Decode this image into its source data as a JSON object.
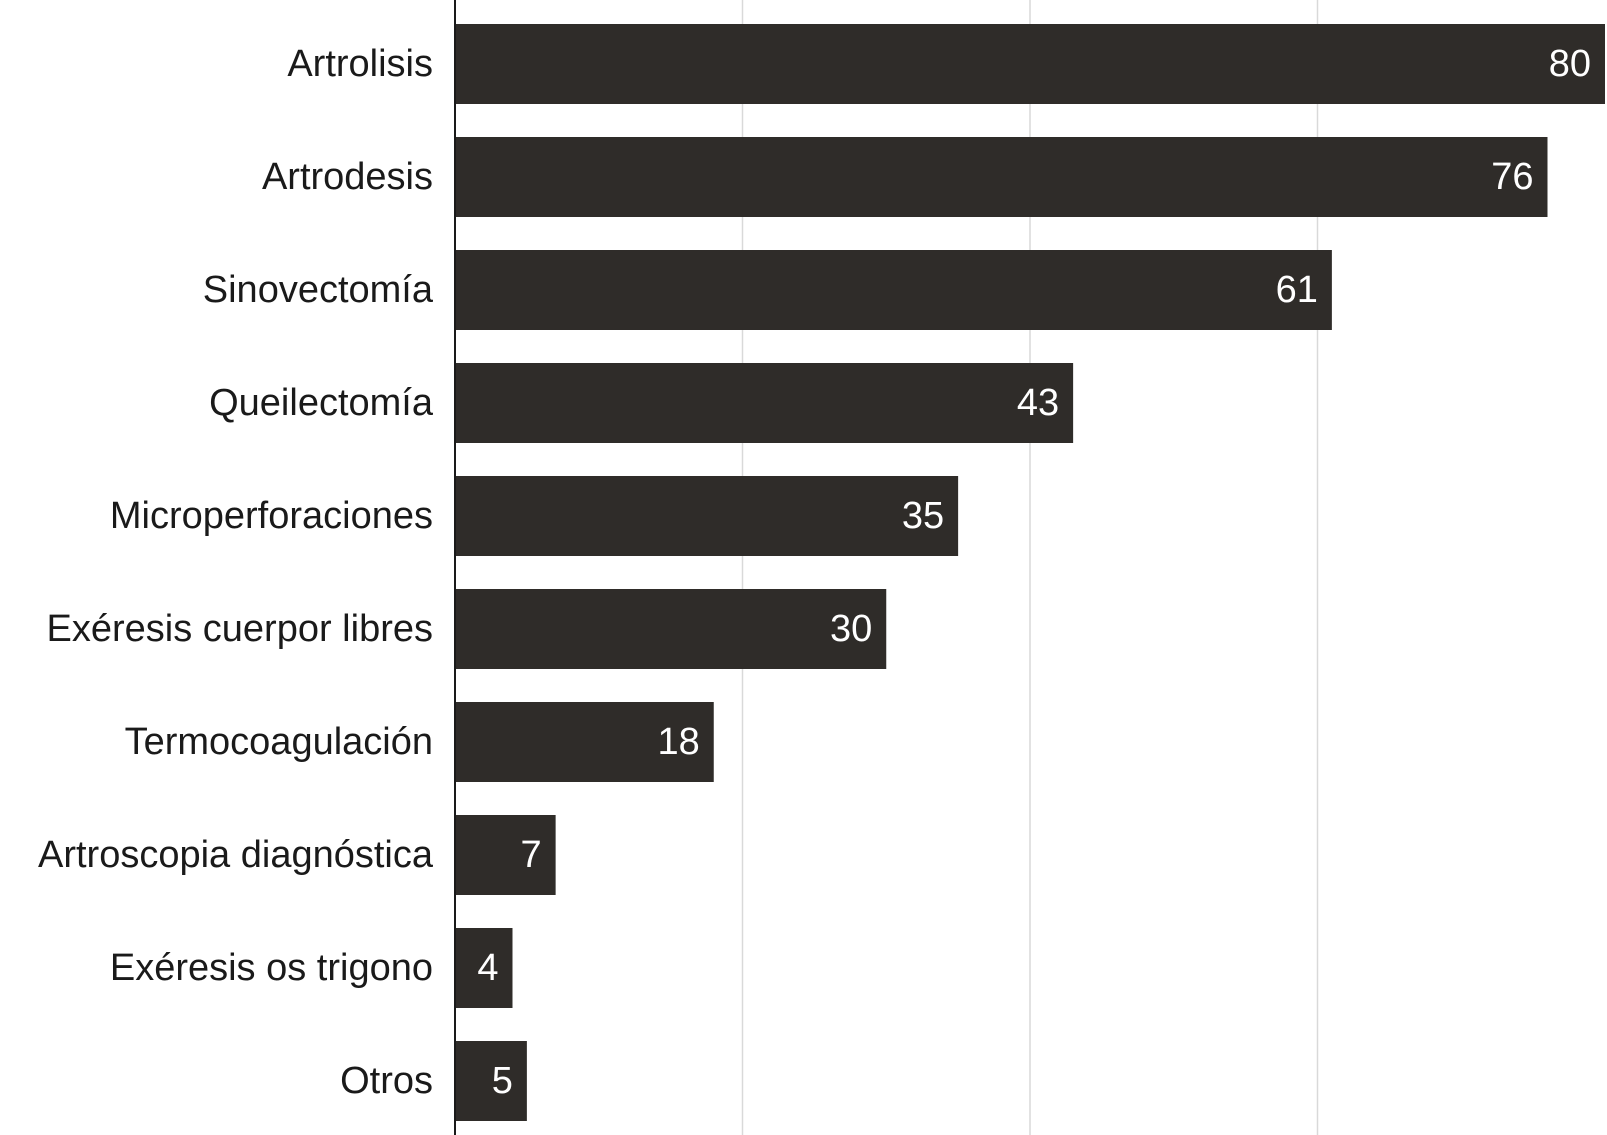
{
  "chart_data": {
    "type": "bar",
    "orientation": "horizontal",
    "categories": [
      "Artrolisis",
      "Artrodesis",
      "Sinovectomía",
      "Queilectomía",
      "Microperforaciones",
      "Exéresis cuerpor libres",
      "Termocoagulación",
      "Artroscopia diagnóstica",
      "Exéresis os trigono",
      "Otros"
    ],
    "values": [
      80,
      76,
      61,
      43,
      35,
      30,
      18,
      7,
      4,
      5
    ],
    "title": "",
    "xlabel": "",
    "ylabel": "",
    "xlim": [
      0,
      80
    ],
    "grid": true,
    "gridlines_at": [
      20,
      40,
      60
    ],
    "legend": "none",
    "bar_color": "#2f2c29",
    "value_label_color": "#ffffff"
  }
}
